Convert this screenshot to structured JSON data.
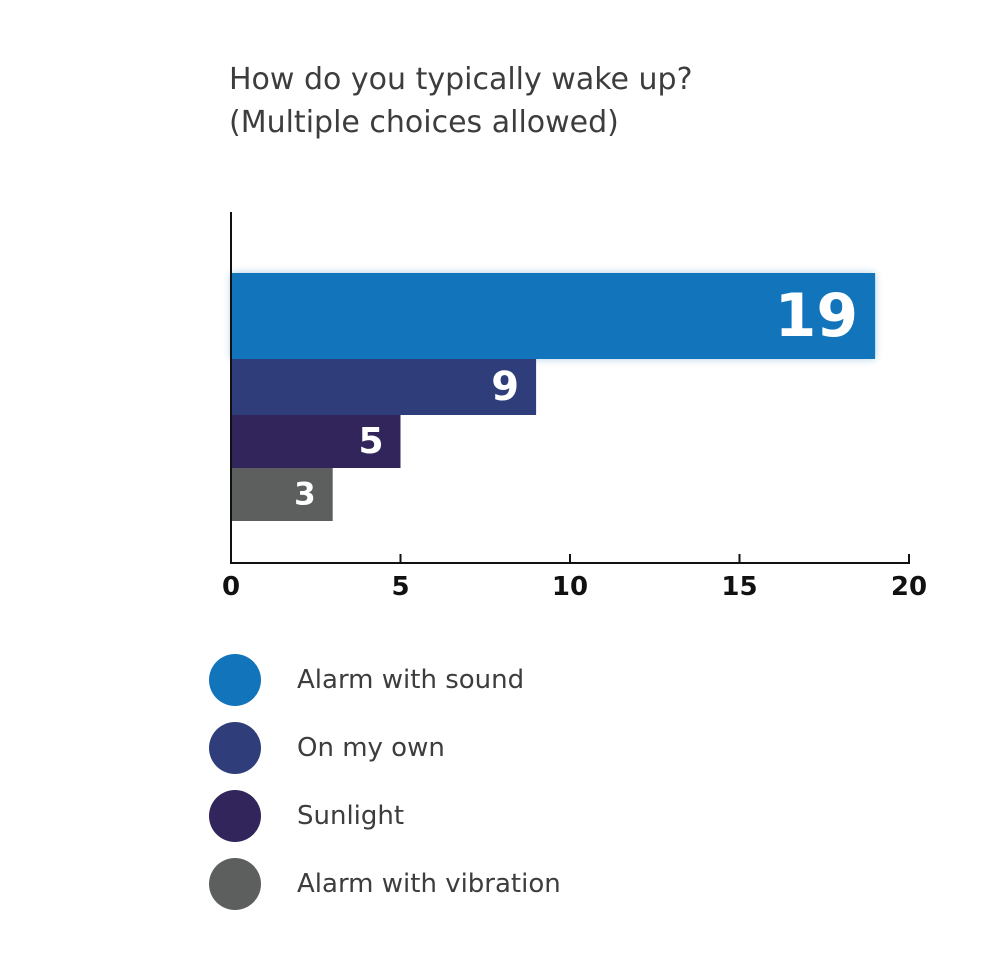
{
  "chart_data": {
    "type": "bar",
    "orientation": "horizontal",
    "title_lines": [
      "How do you typically wake up?",
      "(Multiple choices allowed)"
    ],
    "categories": [
      "Alarm with sound",
      "On my own",
      "Sunlight",
      "Alarm with vibration"
    ],
    "values": [
      19,
      9,
      5,
      3
    ],
    "colors": [
      "#1275bc",
      "#2f3e7a",
      "#31255c",
      "#5d5f5f"
    ],
    "xlim": [
      0,
      20
    ],
    "xticks": [
      0,
      5,
      10,
      15,
      20
    ],
    "grid": false,
    "legend_position": "bottom",
    "data_labels": true
  }
}
